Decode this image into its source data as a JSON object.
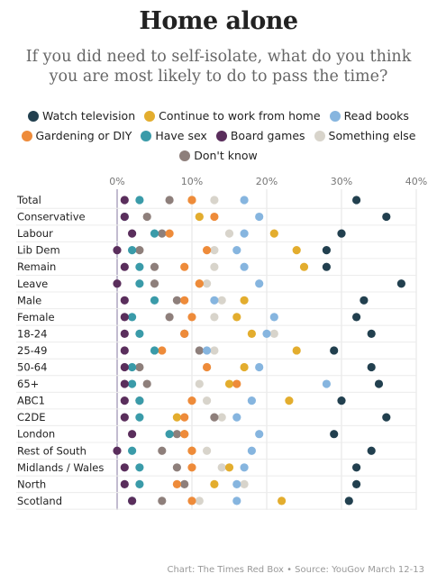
{
  "chart_data": {
    "type": "scatter",
    "title": "Home alone",
    "subtitle": "If you did need to self-isolate, what do you think you are most likely to do to pass the time?",
    "x_ticks": [
      "0%",
      "10%",
      "20%",
      "30%",
      "40%"
    ],
    "x_tick_values": [
      0,
      10,
      20,
      30,
      40
    ],
    "xlim": [
      0,
      40
    ],
    "grid": true,
    "legend_position": "top",
    "legend": [
      {
        "name": "Watch television",
        "color": "#22404f"
      },
      {
        "name": "Continue to work from home",
        "color": "#e3ad2e"
      },
      {
        "name": "Read books",
        "color": "#86b5df"
      },
      {
        "name": "Gardening or DIY",
        "color": "#ee8b3a"
      },
      {
        "name": "Have sex",
        "color": "#3a9ba9"
      },
      {
        "name": "Board games",
        "color": "#5a2e5c"
      },
      {
        "name": "Something else",
        "color": "#d8d4cb"
      },
      {
        "name": "Don't know",
        "color": "#8e7f7b"
      }
    ],
    "categories": [
      "Total",
      "Conservative",
      "Labour",
      "Lib Dem",
      "Remain",
      "Leave",
      "Male",
      "Female",
      "18-24",
      "25-49",
      "50-64",
      "65+",
      "ABC1",
      "C2DE",
      "London",
      "Rest of South",
      "Midlands / Wales",
      "North",
      "Scotland"
    ],
    "series": [
      {
        "name": "Watch television",
        "values": [
          32,
          36,
          30,
          28,
          28,
          38,
          33,
          32,
          34,
          29,
          34,
          35,
          30,
          36,
          29,
          34,
          32,
          32,
          31
        ]
      },
      {
        "name": "Continue to work from home",
        "values": [
          10,
          11,
          21,
          24,
          25,
          11,
          17,
          16,
          18,
          24,
          17,
          15,
          23,
          8,
          9,
          10,
          15,
          13,
          22
        ]
      },
      {
        "name": "Read books",
        "values": [
          17,
          19,
          17,
          16,
          17,
          19,
          13,
          21,
          20,
          12,
          19,
          28,
          18,
          16,
          19,
          18,
          17,
          16,
          16
        ]
      },
      {
        "name": "Gardening or DIY",
        "values": [
          10,
          13,
          7,
          12,
          9,
          11,
          9,
          10,
          9,
          6,
          12,
          16,
          10,
          9,
          9,
          10,
          10,
          8,
          10
        ]
      },
      {
        "name": "Have sex",
        "values": [
          3,
          1,
          5,
          2,
          3,
          3,
          5,
          2,
          3,
          5,
          2,
          2,
          3,
          3,
          7,
          2,
          3,
          3,
          2
        ]
      },
      {
        "name": "Board games",
        "values": [
          1,
          1,
          2,
          0,
          1,
          0,
          1,
          1,
          1,
          1,
          1,
          1,
          1,
          1,
          2,
          0,
          1,
          1,
          2
        ]
      },
      {
        "name": "Something else",
        "values": [
          13,
          11,
          15,
          13,
          13,
          12,
          14,
          13,
          21,
          13,
          12,
          11,
          12,
          14,
          9,
          12,
          14,
          17,
          11
        ]
      },
      {
        "name": "Don't know",
        "values": [
          7,
          4,
          6,
          3,
          5,
          5,
          8,
          7,
          9,
          11,
          3,
          4,
          3,
          13,
          8,
          6,
          8,
          9,
          6
        ]
      }
    ]
  },
  "footer": "Chart: The Times Red Box • Source: YouGov March 12-13"
}
